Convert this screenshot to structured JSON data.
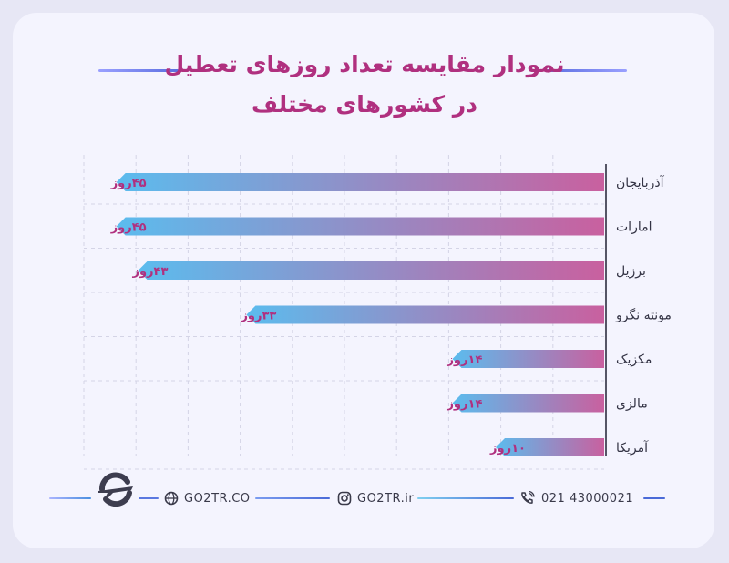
{
  "title": {
    "line1": "نمودار مقایسه تعداد روزهای تعطیل",
    "line2": "در کشورهای مختلف"
  },
  "colors": {
    "accent": "#b0307f",
    "bar_start": "#5bbcee",
    "bar_end": "#c9609f",
    "axis": "#555566"
  },
  "chart_data": {
    "type": "bar",
    "orientation": "horizontal",
    "title": "نمودار مقایسه تعداد روزهای تعطیل در کشورهای مختلف",
    "categories": [
      "آذربایجان",
      "امارات",
      "برزیل",
      "مونته نگرو",
      "مکزیک",
      "مالزی",
      "آمریکا"
    ],
    "values": [
      45,
      45,
      43,
      33,
      14,
      14,
      10
    ],
    "value_labels": [
      "۴۵روز",
      "۴۵روز",
      "۴۳روز",
      "۳۳روز",
      "۱۴روز",
      "۱۴روز",
      "۱۰روز"
    ],
    "xlim": [
      0,
      48
    ],
    "grid": true,
    "legend": "none"
  },
  "footer": {
    "website": "GO2TR.CO",
    "instagram": "GO2TR.ir",
    "phone": "021 43000021",
    "logo_icon": "airplane-logo-icon",
    "website_icon": "globe-icon",
    "instagram_icon": "instagram-icon",
    "phone_icon": "phone-icon"
  }
}
